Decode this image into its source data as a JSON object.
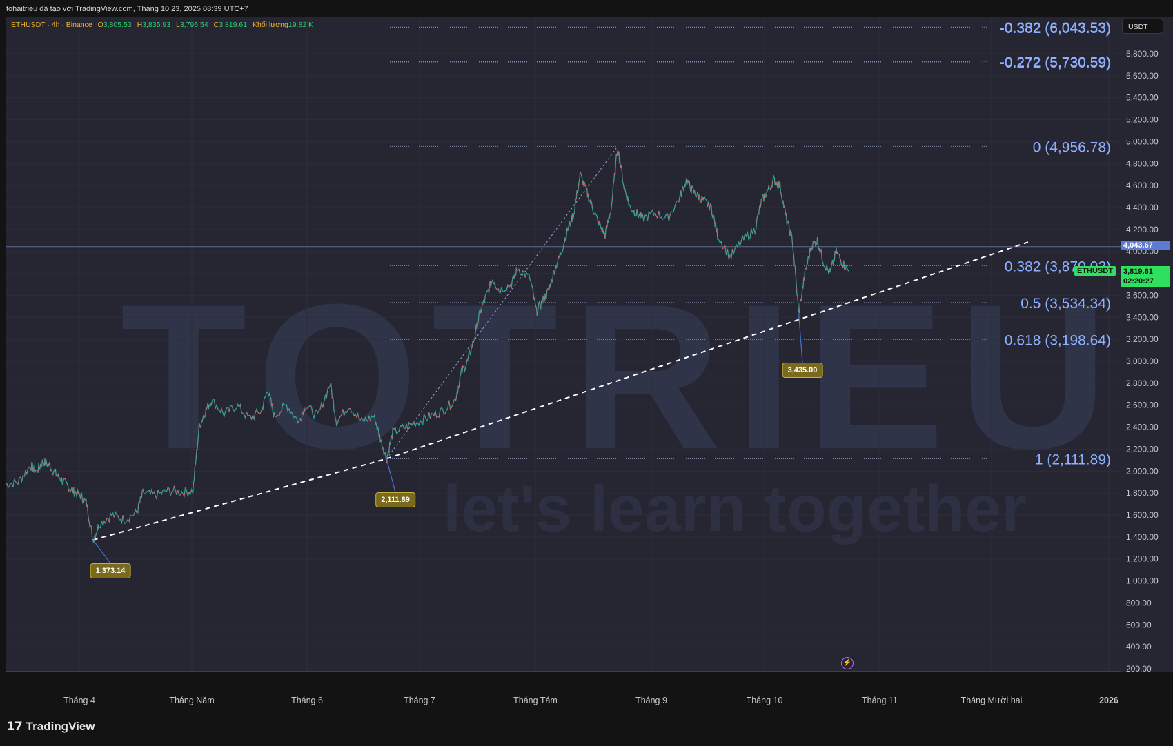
{
  "header": {
    "info": "tohaitrieu đã tạo với TradingView.com, Tháng 10 23, 2025 08:39 UTC+7"
  },
  "legend": {
    "symbol": "ETHUSDT · 4h · Binance",
    "open_label": "O",
    "open": "3,805.53",
    "high_label": "H",
    "high": "3,835.93",
    "low_label": "L",
    "low": "3,796.54",
    "close_label": "C",
    "close": "3,819.61",
    "volume_label": "Khối lượng",
    "volume": "19.82 K"
  },
  "currency": "USDT",
  "price_axis": {
    "ticks": [
      "5,800.00",
      "5,600.00",
      "5,400.00",
      "5,200.00",
      "5,000.00",
      "4,800.00",
      "4,600.00",
      "4,400.00",
      "4,200.00",
      "4,000.00",
      "3,800.00",
      "3,600.00",
      "3,400.00",
      "3,200.00",
      "3,000.00",
      "2,800.00",
      "2,600.00",
      "2,400.00",
      "2,200.00",
      "2,000.00",
      "1,800.00",
      "1,600.00",
      "1,400.00",
      "1,200.00",
      "1,000.00",
      "800.00",
      "600.00",
      "400.00",
      "200.00"
    ],
    "min": 200,
    "max": 5800
  },
  "time_axis": {
    "labels": [
      "Tháng 4",
      "Tháng Năm",
      "Tháng 6",
      "Tháng 7",
      "Tháng Tám",
      "Tháng 9",
      "Tháng 10",
      "Tháng 11",
      "Tháng Mười hai",
      "2026"
    ]
  },
  "fib_levels": [
    {
      "label": "-0.382 (6,043.53)",
      "price": 6043.53
    },
    {
      "label": "-0.272 (5,730.59)",
      "price": 5730.59
    },
    {
      "label": "0 (4,956.78)",
      "price": 4956.78
    },
    {
      "label": "0.382 (3,870.02)",
      "price": 3870.02
    },
    {
      "label": "0.5 (3,534.34)",
      "price": 3534.34
    },
    {
      "label": "0.618 (3,198.64)",
      "price": 3198.64
    },
    {
      "label": "1 (2,111.89)",
      "price": 2111.89
    }
  ],
  "price_badges": [
    {
      "label": "1,373.14",
      "price": 1373.14
    },
    {
      "label": "2,111.89",
      "price": 2111.89
    },
    {
      "label": "3,435.00",
      "price": 3435.0
    }
  ],
  "horizontal_line": {
    "price": 4043.67,
    "label": "4,043.67"
  },
  "last_price": {
    "symbol": "ETHUSDT",
    "price": "3,819.61",
    "countdown": "02:20:27"
  },
  "watermark": {
    "text": "TOTRIEU",
    "tagline": "let's learn together"
  },
  "footer": {
    "brand": "TradingView"
  },
  "colors": {
    "up": "#26a69a",
    "down": "#ef5350",
    "fib": "#8fb0ff",
    "badge": "#7a6a1c",
    "last": "#2fe05f",
    "bg": "#262633"
  },
  "chart_data": {
    "type": "line",
    "title": "",
    "x_labels": [
      "Tháng 4",
      "Tháng Năm",
      "Tháng 6",
      "Tháng 7",
      "Tháng Tám",
      "Tháng 9",
      "Tháng 10",
      "Tháng 11"
    ],
    "series": [
      {
        "name": "ETHUSDT",
        "points": [
          [
            0,
            1880
          ],
          [
            2,
            1900
          ],
          [
            4,
            2050
          ],
          [
            5,
            2000
          ],
          [
            6,
            2090
          ],
          [
            7,
            2050
          ],
          [
            8,
            1980
          ],
          [
            9,
            1920
          ],
          [
            10,
            1860
          ],
          [
            11,
            1810
          ],
          [
            12,
            1780
          ],
          [
            13,
            1700
          ],
          [
            14,
            1373
          ],
          [
            15,
            1520
          ],
          [
            17,
            1600
          ],
          [
            19,
            1560
          ],
          [
            21,
            1620
          ],
          [
            22,
            1800
          ],
          [
            24,
            1780
          ],
          [
            26,
            1820
          ],
          [
            28,
            1810
          ],
          [
            30,
            1820
          ],
          [
            31,
            2400
          ],
          [
            32,
            2550
          ],
          [
            33,
            2650
          ],
          [
            35,
            2520
          ],
          [
            37,
            2600
          ],
          [
            39,
            2480
          ],
          [
            41,
            2550
          ],
          [
            42,
            2750
          ],
          [
            43,
            2500
          ],
          [
            45,
            2600
          ],
          [
            47,
            2450
          ],
          [
            48,
            2600
          ],
          [
            50,
            2500
          ],
          [
            52,
            2800
          ],
          [
            53,
            2450
          ],
          [
            55,
            2600
          ],
          [
            57,
            2450
          ],
          [
            59,
            2500
          ],
          [
            60,
            2300
          ],
          [
            61,
            2112
          ],
          [
            62,
            2350
          ],
          [
            64,
            2400
          ],
          [
            66,
            2450
          ],
          [
            68,
            2500
          ],
          [
            70,
            2550
          ],
          [
            72,
            2650
          ],
          [
            73,
            2900
          ],
          [
            74,
            3000
          ],
          [
            75,
            3200
          ],
          [
            76,
            3450
          ],
          [
            77,
            3600
          ],
          [
            78,
            3750
          ],
          [
            79,
            3650
          ],
          [
            81,
            3700
          ],
          [
            82,
            3850
          ],
          [
            84,
            3750
          ],
          [
            85,
            3450
          ],
          [
            86,
            3550
          ],
          [
            87,
            3650
          ],
          [
            88,
            3850
          ],
          [
            89,
            4000
          ],
          [
            90,
            4200
          ],
          [
            91,
            4350
          ],
          [
            92,
            4700
          ],
          [
            93,
            4550
          ],
          [
            94,
            4400
          ],
          [
            95,
            4250
          ],
          [
            96,
            4150
          ],
          [
            97,
            4400
          ],
          [
            98,
            4957
          ],
          [
            99,
            4600
          ],
          [
            100,
            4400
          ],
          [
            101,
            4350
          ],
          [
            102,
            4300
          ],
          [
            104,
            4350
          ],
          [
            106,
            4300
          ],
          [
            108,
            4500
          ],
          [
            109,
            4650
          ],
          [
            110,
            4550
          ],
          [
            111,
            4500
          ],
          [
            112,
            4450
          ],
          [
            113,
            4400
          ],
          [
            114,
            4150
          ],
          [
            116,
            3950
          ],
          [
            118,
            4100
          ],
          [
            120,
            4200
          ],
          [
            121,
            4450
          ],
          [
            122,
            4550
          ],
          [
            123,
            4650
          ],
          [
            124,
            4600
          ],
          [
            125,
            4300
          ],
          [
            126,
            4100
          ],
          [
            127,
            3435
          ],
          [
            128,
            3800
          ],
          [
            129,
            4050
          ],
          [
            130,
            4100
          ],
          [
            131,
            3900
          ],
          [
            132,
            3800
          ],
          [
            133,
            4000
          ],
          [
            134,
            3900
          ],
          [
            135,
            3820
          ]
        ]
      }
    ],
    "ylim": [
      200,
      5800
    ]
  }
}
